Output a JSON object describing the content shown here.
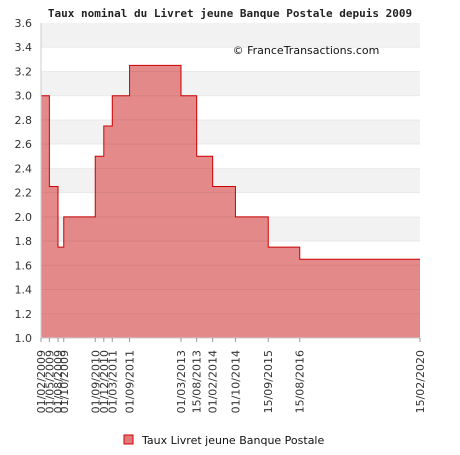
{
  "chart_data": {
    "type": "area",
    "title": "Taux nominal du Livret jeune Banque Postale depuis 2009",
    "credit": "© FranceTransactions.com",
    "xlabel": "",
    "ylabel": "",
    "ylim": [
      1.0,
      3.6
    ],
    "y_ticks": [
      "1.0",
      "1.2",
      "1.4",
      "1.6",
      "1.8",
      "2.0",
      "2.2",
      "2.4",
      "2.6",
      "2.8",
      "3.0",
      "3.2",
      "3.4",
      "3.6"
    ],
    "step": "post",
    "grid": "horizontal bands",
    "legend_position": "bottom",
    "colors": {
      "fill": "#e07a7a",
      "line": "#cc0000",
      "band": "#f2f2f2",
      "axis": "#cccccc"
    },
    "x_range": [
      "2009-02-01",
      "2020-02-15"
    ],
    "x_ticks": [
      "01/02/2009",
      "01/05/2009",
      "01/08/2009",
      "01/10/2009",
      "01/09/2010",
      "01/12/2010",
      "01/03/2011",
      "01/09/2011",
      "01/03/2013",
      "15/08/2013",
      "01/02/2014",
      "01/10/2014",
      "15/09/2015",
      "15/08/2016",
      "15/02/2020"
    ],
    "series": [
      {
        "name": "Taux Livret jeune Banque Postale",
        "points": [
          {
            "x": "2009-02-01",
            "y": 3.0
          },
          {
            "x": "2009-05-01",
            "y": 2.25
          },
          {
            "x": "2009-08-01",
            "y": 1.75
          },
          {
            "x": "2009-10-01",
            "y": 2.0
          },
          {
            "x": "2010-09-01",
            "y": 2.5
          },
          {
            "x": "2010-12-01",
            "y": 2.75
          },
          {
            "x": "2011-03-01",
            "y": 3.0
          },
          {
            "x": "2011-09-01",
            "y": 3.25
          },
          {
            "x": "2013-03-01",
            "y": 3.0
          },
          {
            "x": "2013-08-15",
            "y": 2.5
          },
          {
            "x": "2014-02-01",
            "y": 2.25
          },
          {
            "x": "2014-10-01",
            "y": 2.0
          },
          {
            "x": "2015-09-15",
            "y": 1.75
          },
          {
            "x": "2016-08-15",
            "y": 1.65
          },
          {
            "x": "2020-02-15",
            "y": 1.65
          }
        ]
      }
    ]
  }
}
